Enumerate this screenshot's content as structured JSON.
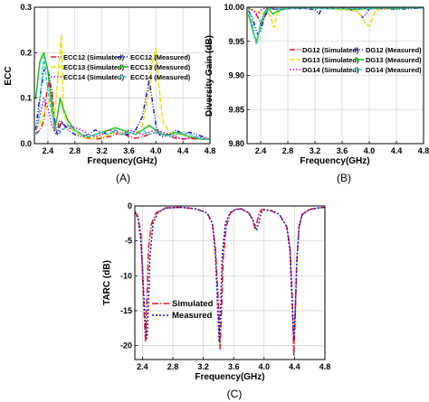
{
  "chart_data": [
    {
      "id": "A",
      "type": "line",
      "caption": "(A)",
      "xlabel": "Frequency(GHz)",
      "ylabel": "ECC",
      "xlim": [
        2.2,
        4.8
      ],
      "ylim": [
        0.0,
        0.3
      ],
      "xticks": [
        "2.4",
        "2.8",
        "3.2",
        "3.6",
        "4.0",
        "4.4",
        "4.8"
      ],
      "yticks": [
        "0.0",
        "0.1",
        "0.2",
        "0.3"
      ],
      "grid": true,
      "legend_position": "top-right",
      "series": [
        {
          "name": "ECC12 (Simulated)",
          "color": "#e8141e",
          "dash": "6,2,1,2",
          "x": [
            2.22,
            2.28,
            2.34,
            2.38,
            2.42,
            2.46,
            2.5,
            2.52,
            2.54,
            2.56,
            2.6,
            2.7,
            2.8,
            2.9,
            3.0,
            3.1,
            3.2,
            3.3,
            3.4,
            3.5,
            3.6,
            3.7,
            3.8,
            3.9,
            4.0,
            4.1,
            4.2,
            4.3,
            4.4,
            4.5,
            4.6,
            4.7,
            4.8
          ],
          "y": [
            0.02,
            0.03,
            0.05,
            0.11,
            0.14,
            0.12,
            0.05,
            0.03,
            0.02,
            0.05,
            0.045,
            0.035,
            0.03,
            0.02,
            0.012,
            0.01,
            0.012,
            0.015,
            0.02,
            0.025,
            0.015,
            0.012,
            0.015,
            0.02,
            0.025,
            0.02,
            0.015,
            0.012,
            0.01,
            0.012,
            0.01,
            0.01,
            0.01
          ]
        },
        {
          "name": "ECC12 (Measured)",
          "color": "#1414c8",
          "dash": "5,2,1,2,1,2",
          "x": [
            2.22,
            2.26,
            2.3,
            2.34,
            2.38,
            2.42,
            2.46,
            2.5,
            2.54,
            2.58,
            2.6,
            2.7,
            2.8,
            2.9,
            3.0,
            3.1,
            3.2,
            3.3,
            3.4,
            3.5,
            3.6,
            3.7,
            3.8,
            3.85,
            3.9,
            3.95,
            4.0,
            4.05,
            4.1,
            4.2,
            4.3,
            4.4,
            4.5,
            4.6,
            4.7,
            4.8
          ],
          "y": [
            0.03,
            0.08,
            0.12,
            0.16,
            0.17,
            0.15,
            0.09,
            0.05,
            0.02,
            0.04,
            0.05,
            0.03,
            0.02,
            0.015,
            0.02,
            0.03,
            0.025,
            0.02,
            0.03,
            0.02,
            0.02,
            0.03,
            0.06,
            0.1,
            0.14,
            0.09,
            0.04,
            0.02,
            0.015,
            0.02,
            0.03,
            0.02,
            0.025,
            0.02,
            0.015,
            0.01
          ]
        },
        {
          "name": "ECC13 (Simulated)",
          "color": "#e8e010",
          "dash": "6,2",
          "x": [
            2.22,
            2.3,
            2.38,
            2.44,
            2.5,
            2.55,
            2.58,
            2.6,
            2.63,
            2.7,
            2.8,
            2.9,
            3.0,
            3.1,
            3.2,
            3.3,
            3.4,
            3.5,
            3.6,
            3.7,
            3.8,
            3.9,
            3.95,
            4.0,
            4.05,
            4.1,
            4.2,
            4.3,
            4.4,
            4.5,
            4.6,
            4.7,
            4.8
          ],
          "y": [
            0.03,
            0.05,
            0.08,
            0.1,
            0.06,
            0.15,
            0.2,
            0.24,
            0.07,
            0.04,
            0.025,
            0.015,
            0.01,
            0.012,
            0.015,
            0.02,
            0.025,
            0.02,
            0.025,
            0.02,
            0.04,
            0.12,
            0.18,
            0.21,
            0.12,
            0.05,
            0.025,
            0.02,
            0.02,
            0.015,
            0.012,
            0.01,
            0.01
          ]
        },
        {
          "name": "ECC13 (Measured)",
          "color": "#20c020",
          "dash": "",
          "x": [
            2.22,
            2.28,
            2.34,
            2.4,
            2.46,
            2.5,
            2.54,
            2.58,
            2.62,
            2.7,
            2.8,
            2.9,
            3.0,
            3.1,
            3.2,
            3.3,
            3.4,
            3.5,
            3.6,
            3.7,
            3.8,
            3.9,
            4.0,
            4.1,
            4.2,
            4.3,
            4.4,
            4.5,
            4.6,
            4.7,
            4.8
          ],
          "y": [
            0.1,
            0.18,
            0.2,
            0.16,
            0.08,
            0.03,
            0.06,
            0.1,
            0.08,
            0.05,
            0.03,
            0.02,
            0.015,
            0.02,
            0.025,
            0.03,
            0.035,
            0.03,
            0.025,
            0.02,
            0.03,
            0.04,
            0.03,
            0.02,
            0.02,
            0.025,
            0.02,
            0.015,
            0.012,
            0.01,
            0.01
          ]
        },
        {
          "name": "ECC14 (Simulated)",
          "color": "#c800c8",
          "dash": "1.5,2",
          "x": [
            2.22,
            2.28,
            2.34,
            2.4,
            2.46,
            2.52,
            2.6,
            2.7,
            2.8,
            2.9,
            3.0,
            3.1,
            3.2,
            3.3,
            3.4,
            3.5,
            3.6,
            3.7,
            3.8,
            3.9,
            4.0,
            4.1,
            4.2,
            4.3,
            4.4,
            4.5,
            4.6,
            4.7,
            4.8
          ],
          "y": [
            0.03,
            0.06,
            0.1,
            0.08,
            0.04,
            0.02,
            0.03,
            0.04,
            0.035,
            0.03,
            0.02,
            0.015,
            0.02,
            0.03,
            0.025,
            0.02,
            0.03,
            0.025,
            0.02,
            0.025,
            0.03,
            0.025,
            0.02,
            0.015,
            0.01,
            0.012,
            0.015,
            0.012,
            0.01
          ]
        },
        {
          "name": "ECC14 (Measured)",
          "color": "#30d0d0",
          "dash": "4,2",
          "x": [
            2.22,
            2.26,
            2.3,
            2.34,
            2.38,
            2.44,
            2.5,
            2.56,
            2.62,
            2.7,
            2.8,
            2.9,
            3.0,
            3.1,
            3.2,
            3.3,
            3.4,
            3.5,
            3.6,
            3.7,
            3.8,
            3.9,
            4.0,
            4.1,
            4.2,
            4.3,
            4.4,
            4.5,
            4.6,
            4.7,
            4.8
          ],
          "y": [
            0.02,
            0.05,
            0.13,
            0.19,
            0.14,
            0.08,
            0.04,
            0.02,
            0.03,
            0.04,
            0.03,
            0.02,
            0.015,
            0.02,
            0.025,
            0.02,
            0.03,
            0.02,
            0.025,
            0.02,
            0.03,
            0.02,
            0.025,
            0.02,
            0.015,
            0.02,
            0.025,
            0.02,
            0.015,
            0.01,
            0.01
          ]
        }
      ]
    },
    {
      "id": "B",
      "type": "line",
      "caption": "(B)",
      "xlabel": "Frequency(GHz)",
      "ylabel": "Diversity Gain (dB)",
      "xlim": [
        2.2,
        4.8
      ],
      "ylim": [
        9.8,
        10.0
      ],
      "xticks": [
        "2.4",
        "2.8",
        "3.2",
        "3.6",
        "4.0",
        "4.4",
        "4.8"
      ],
      "yticks": [
        "9.80",
        "9.85",
        "9.90",
        "9.95",
        "10.00"
      ],
      "grid": true,
      "legend_position": "center-right",
      "series": [
        {
          "name": "DG12 (Simulated)",
          "color": "#e8141e",
          "dash": "6,2,1,2",
          "x": [
            2.22,
            2.3,
            2.36,
            2.4,
            2.44,
            2.5,
            2.56,
            2.6,
            2.8,
            3.0,
            3.2,
            3.4,
            3.6,
            3.8,
            4.0,
            4.2,
            4.4,
            4.6,
            4.8
          ],
          "y": [
            9.999,
            9.995,
            9.985,
            9.975,
            9.982,
            9.996,
            9.998,
            9.997,
            9.998,
            9.999,
            9.999,
            9.998,
            9.999,
            9.999,
            9.998,
            9.999,
            9.999,
            9.999,
            9.999
          ]
        },
        {
          "name": "DG12 (Measured)",
          "color": "#1414c8",
          "dash": "5,2,1,2,1,2",
          "x": [
            2.22,
            2.28,
            2.32,
            2.36,
            2.4,
            2.44,
            2.5,
            2.56,
            2.6,
            2.8,
            3.0,
            3.2,
            3.26,
            3.3,
            3.6,
            3.8,
            3.86,
            3.9,
            3.95,
            4.0,
            4.2,
            4.4,
            4.6,
            4.8
          ],
          "y": [
            9.995,
            9.985,
            9.97,
            9.96,
            9.965,
            9.98,
            9.995,
            9.998,
            9.997,
            9.999,
            9.998,
            9.997,
            9.99,
            9.998,
            9.998,
            9.995,
            9.99,
            9.985,
            9.99,
            9.998,
            9.998,
            9.997,
            9.998,
            9.999
          ]
        },
        {
          "name": "DG13 (Simulated)",
          "color": "#e8e010",
          "dash": "6,2",
          "x": [
            2.22,
            2.3,
            2.4,
            2.5,
            2.55,
            2.58,
            2.6,
            2.64,
            2.7,
            2.8,
            3.0,
            3.4,
            3.8,
            3.9,
            3.95,
            4.0,
            4.05,
            4.1,
            4.3,
            4.6,
            4.8
          ],
          "y": [
            9.998,
            9.996,
            9.99,
            9.994,
            9.985,
            9.975,
            9.97,
            9.99,
            9.998,
            9.999,
            9.999,
            9.998,
            9.995,
            9.985,
            9.975,
            9.972,
            9.985,
            9.996,
            9.998,
            9.999,
            9.999
          ]
        },
        {
          "name": "DG13 (Measured)",
          "color": "#20c020",
          "dash": "",
          "x": [
            2.22,
            2.26,
            2.3,
            2.34,
            2.38,
            2.42,
            2.46,
            2.5,
            2.54,
            2.58,
            2.62,
            2.7,
            2.8,
            3.0,
            3.2,
            3.4,
            3.6,
            3.8,
            4.0,
            4.2,
            4.4,
            4.6,
            4.8
          ],
          "y": [
            9.99,
            9.975,
            9.96,
            9.95,
            9.965,
            9.98,
            9.993,
            9.999,
            9.995,
            9.99,
            9.993,
            9.996,
            9.998,
            9.999,
            9.999,
            9.998,
            9.998,
            9.997,
            9.998,
            9.999,
            9.998,
            9.999,
            9.999
          ]
        },
        {
          "name": "DG14 (Simulated)",
          "color": "#c800c8",
          "dash": "1.5,2",
          "x": [
            2.22,
            2.3,
            2.34,
            2.38,
            2.42,
            2.48,
            2.56,
            2.7,
            2.9,
            3.2,
            3.5,
            3.8,
            4.1,
            4.4,
            4.8
          ],
          "y": [
            9.999,
            9.995,
            9.99,
            9.993,
            9.997,
            9.999,
            9.999,
            9.998,
            9.998,
            9.999,
            9.998,
            9.999,
            9.998,
            9.999,
            9.999
          ]
        },
        {
          "name": "DG14 (Measured)",
          "color": "#30d0d0",
          "dash": "4,2",
          "x": [
            2.22,
            2.25,
            2.28,
            2.31,
            2.34,
            2.37,
            2.4,
            2.45,
            2.5,
            2.6,
            2.8,
            3.0,
            3.4,
            3.8,
            4.2,
            4.6,
            4.8
          ],
          "y": [
            9.998,
            9.99,
            9.975,
            9.955,
            9.945,
            9.96,
            9.98,
            9.99,
            9.997,
            9.998,
            9.998,
            9.999,
            9.998,
            9.998,
            9.999,
            9.999,
            9.999
          ]
        }
      ]
    },
    {
      "id": "C",
      "type": "line",
      "caption": "(C)",
      "xlabel": "Frequency(GHz)",
      "ylabel": "TARC (dB)",
      "xlim": [
        2.3,
        4.8
      ],
      "ylim": [
        -22,
        0
      ],
      "xticks": [
        "2.4",
        "2.8",
        "3.2",
        "3.6",
        "4.0",
        "4.4",
        "4.8"
      ],
      "yticks": [
        "0",
        "-5",
        "-10",
        "-15",
        "-20"
      ],
      "grid": true,
      "legend_position": "center-left",
      "series": [
        {
          "name": "Simulated",
          "color": "#e8141e",
          "dash": "7,2,1.5,2",
          "x": [
            2.3,
            2.34,
            2.38,
            2.4,
            2.42,
            2.44,
            2.46,
            2.48,
            2.52,
            2.58,
            2.7,
            2.9,
            3.1,
            3.25,
            3.32,
            3.36,
            3.4,
            3.42,
            3.44,
            3.46,
            3.5,
            3.56,
            3.62,
            3.7,
            3.8,
            3.85,
            3.88,
            3.9,
            3.93,
            3.96,
            4.0,
            4.1,
            4.2,
            4.3,
            4.34,
            4.37,
            4.39,
            4.41,
            4.43,
            4.46,
            4.5,
            4.6,
            4.7,
            4.8
          ],
          "y": [
            -0.8,
            -1.5,
            -4,
            -9,
            -15,
            -19.5,
            -13,
            -6,
            -2.5,
            -1,
            -0.3,
            -0.2,
            -0.4,
            -1,
            -2.5,
            -6,
            -14,
            -20.5,
            -15,
            -8,
            -3,
            -1,
            -0.5,
            -0.4,
            -1,
            -2,
            -3.2,
            -2.6,
            -1.2,
            -0.6,
            -0.5,
            -0.7,
            -1.2,
            -3,
            -6,
            -13,
            -21.5,
            -16,
            -8,
            -3,
            -1.2,
            -0.5,
            -0.3,
            -0.2
          ]
        },
        {
          "name": "Measured",
          "color": "#1414c8",
          "dash": "2,2",
          "x": [
            2.3,
            2.34,
            2.38,
            2.41,
            2.44,
            2.46,
            2.48,
            2.5,
            2.54,
            2.6,
            2.7,
            2.9,
            3.1,
            3.25,
            3.32,
            3.36,
            3.39,
            3.41,
            3.43,
            3.45,
            3.49,
            3.55,
            3.62,
            3.7,
            3.8,
            3.86,
            3.9,
            3.93,
            3.96,
            4.0,
            4.1,
            4.2,
            4.3,
            4.34,
            4.37,
            4.39,
            4.41,
            4.43,
            4.46,
            4.5,
            4.6,
            4.7,
            4.8
          ],
          "y": [
            -0.9,
            -1.8,
            -5,
            -11,
            -17,
            -19,
            -14,
            -7,
            -2.5,
            -1,
            -0.3,
            -0.2,
            -0.4,
            -1,
            -2.5,
            -7,
            -15,
            -19.5,
            -14,
            -7,
            -2.5,
            -1,
            -0.5,
            -0.4,
            -1,
            -2.2,
            -3.5,
            -2.5,
            -1,
            -0.5,
            -0.7,
            -1.2,
            -3,
            -6.5,
            -14,
            -19,
            -15,
            -8,
            -3,
            -1.2,
            -0.5,
            -0.3,
            -0.2
          ]
        }
      ]
    }
  ]
}
